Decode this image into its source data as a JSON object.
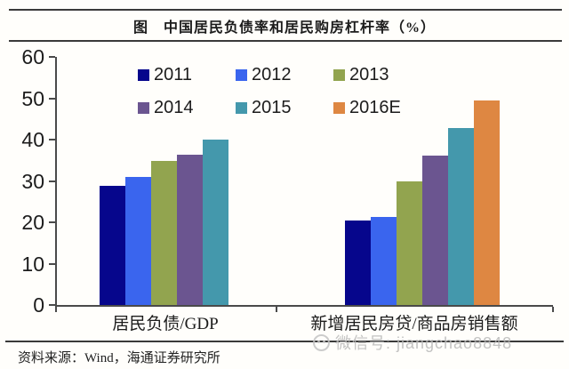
{
  "header": {
    "title": "图　中国居民负债率和居民购房杠杆率（%）"
  },
  "footer": {
    "source": "资料来源：Wind，海通证券研究所",
    "watermark": "微信号: jiangchao8848"
  },
  "style": {
    "axis_color": "#4a4a4a",
    "rule_color": "#3a3a3a",
    "watermark_color": "#b9b9b9"
  },
  "chart_data": {
    "type": "bar",
    "title": "图　中国居民负债率和居民购房杠杆率（%）",
    "categories": [
      "居民负债/GDP",
      "新增居民房贷/商品房销售额"
    ],
    "series": [
      {
        "name": "2011",
        "color": "#06068c",
        "values": [
          28.8,
          20.4
        ]
      },
      {
        "name": "2012",
        "color": "#3a65ee",
        "values": [
          31.0,
          21.3
        ]
      },
      {
        "name": "2013",
        "color": "#92a44f",
        "values": [
          34.9,
          29.8
        ]
      },
      {
        "name": "2014",
        "color": "#6b5590",
        "values": [
          36.3,
          36.2
        ]
      },
      {
        "name": "2015",
        "color": "#4498ac",
        "values": [
          40.0,
          42.9
        ]
      },
      {
        "name": "2016E",
        "color": "#de8742",
        "values": [
          null,
          49.5
        ]
      }
    ],
    "xlabel": "",
    "ylabel": "",
    "ylim": [
      0,
      60
    ],
    "yticks": [
      0,
      10,
      20,
      30,
      40,
      50,
      60
    ],
    "grid": false,
    "legend_position": "top-inside"
  }
}
